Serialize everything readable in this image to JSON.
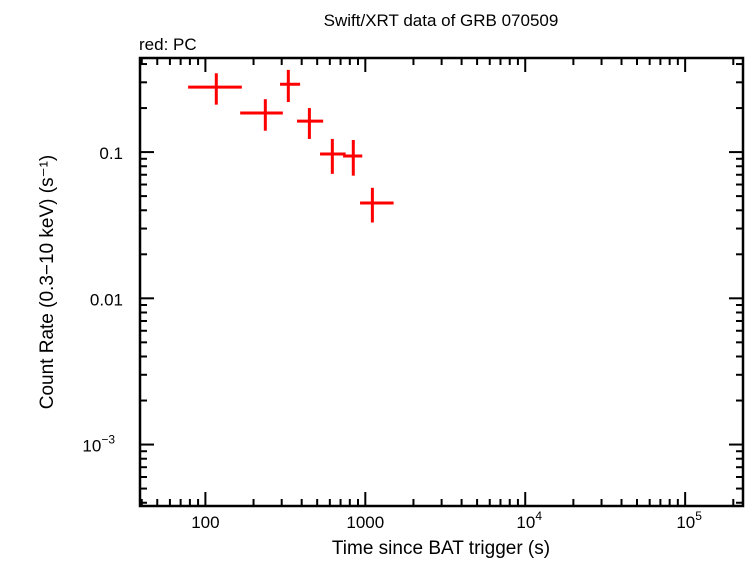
{
  "chart_data": {
    "type": "scatter",
    "title": "Swift/XRT data of GRB 070509",
    "subtitle": "red: PC",
    "xlabel": "Time since BAT trigger (s)",
    "ylabel": "Count Rate (0.3−10 keV) (s⁻¹)",
    "xscale": "log",
    "yscale": "log",
    "xlim": [
      39,
      230000
    ],
    "ylim": [
      0.00038,
      0.44
    ],
    "xticks": [
      {
        "value": 100,
        "label": "100"
      },
      {
        "value": 1000,
        "label": "1000"
      },
      {
        "value": 10000,
        "label": "10",
        "exp": "4"
      },
      {
        "value": 100000,
        "label": "10",
        "exp": "5"
      }
    ],
    "yticks": [
      {
        "value": 0.1,
        "label": "0.1"
      },
      {
        "value": 0.01,
        "label": "0.01"
      },
      {
        "value": 0.001,
        "label": "10",
        "exp": "−3"
      }
    ],
    "series": [
      {
        "name": "PC",
        "color": "#ff0000",
        "points": [
          {
            "x": 117,
            "xlo": 78,
            "xhi": 169,
            "y": 0.278,
            "ylo": 0.211,
            "yhi": 0.346
          },
          {
            "x": 237,
            "xlo": 165,
            "xhi": 305,
            "y": 0.185,
            "ylo": 0.14,
            "yhi": 0.23
          },
          {
            "x": 330,
            "xlo": 293,
            "xhi": 391,
            "y": 0.291,
            "ylo": 0.22,
            "yhi": 0.365
          },
          {
            "x": 447,
            "xlo": 374,
            "xhi": 545,
            "y": 0.163,
            "ylo": 0.123,
            "yhi": 0.2
          },
          {
            "x": 622,
            "xlo": 521,
            "xhi": 753,
            "y": 0.097,
            "ylo": 0.071,
            "yhi": 0.123
          },
          {
            "x": 841,
            "xlo": 726,
            "xhi": 957,
            "y": 0.094,
            "ylo": 0.069,
            "yhi": 0.121
          },
          {
            "x": 1107,
            "xlo": 927,
            "xhi": 1503,
            "y": 0.0449,
            "ylo": 0.033,
            "yhi": 0.057
          }
        ]
      }
    ]
  }
}
